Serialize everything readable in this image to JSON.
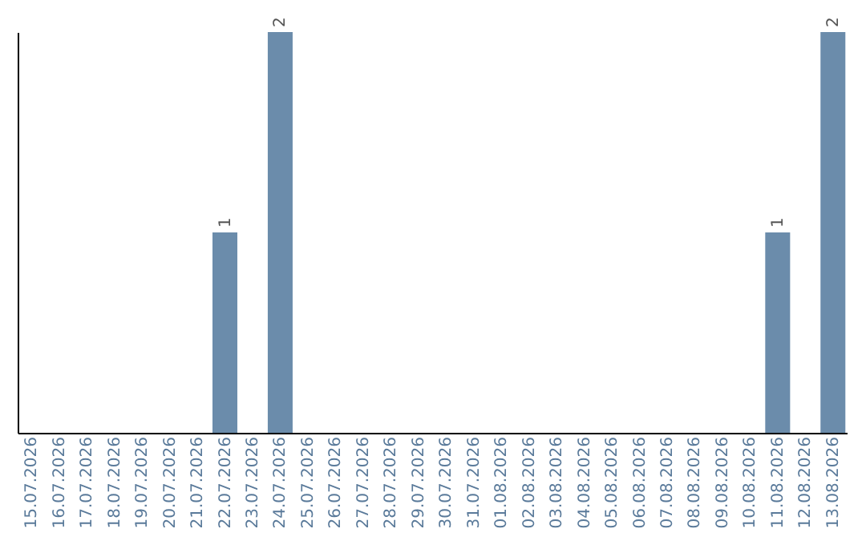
{
  "chart_data": {
    "type": "bar",
    "categories": [
      "15.07.2026",
      "16.07.2026",
      "17.07.2026",
      "18.07.2026",
      "19.07.2026",
      "20.07.2026",
      "21.07.2026",
      "22.07.2026",
      "23.07.2026",
      "24.07.2026",
      "25.07.2026",
      "26.07.2026",
      "27.07.2026",
      "28.07.2026",
      "29.07.2026",
      "30.07.2026",
      "31.07.2026",
      "01.08.2026",
      "02.08.2026",
      "03.08.2026",
      "04.08.2026",
      "05.08.2026",
      "06.08.2026",
      "07.08.2026",
      "08.08.2026",
      "09.08.2026",
      "10.08.2026",
      "11.08.2026",
      "12.08.2026",
      "13.08.2026"
    ],
    "values": [
      0,
      0,
      0,
      0,
      0,
      0,
      0,
      1,
      0,
      2,
      0,
      0,
      0,
      0,
      0,
      0,
      0,
      0,
      0,
      0,
      0,
      0,
      0,
      0,
      0,
      0,
      0,
      1,
      0,
      2
    ],
    "value_labels": [
      null,
      null,
      null,
      null,
      null,
      null,
      null,
      "1",
      null,
      "2",
      null,
      null,
      null,
      null,
      null,
      null,
      null,
      null,
      null,
      null,
      null,
      null,
      null,
      null,
      null,
      null,
      null,
      "1",
      null,
      "2"
    ],
    "color": "#6b8cab",
    "ylim": [
      0,
      2
    ],
    "tick_labels": "x",
    "grid": false
  }
}
